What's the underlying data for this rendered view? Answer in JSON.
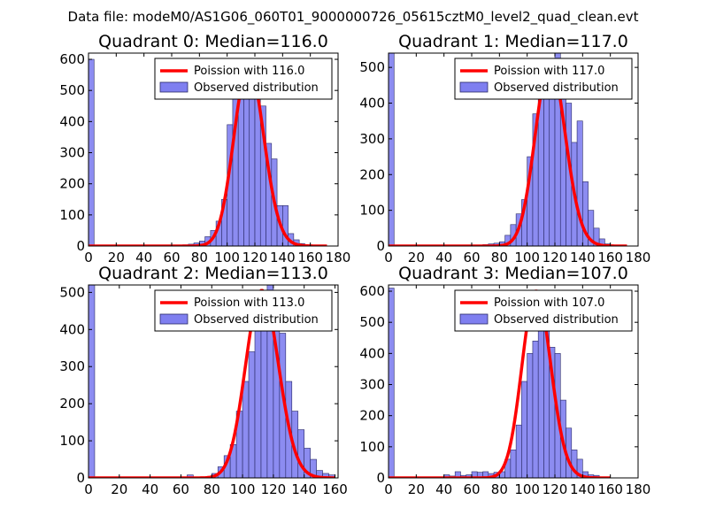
{
  "figure_title": "Data file: modeM0/AS1G06_060T01_9000000726_05615cztM0_level2_quad_clean.evt",
  "chart_data": [
    {
      "type": "bar",
      "title": "Quadrant 0: Median=116.0",
      "median": 116.0,
      "xlim": [
        0,
        180
      ],
      "ylim": [
        0,
        620
      ],
      "xticks": [
        0,
        20,
        40,
        60,
        80,
        100,
        120,
        140,
        160,
        180
      ],
      "yticks": [
        0,
        100,
        200,
        300,
        400,
        500,
        600
      ],
      "bin_width": 4,
      "legend": {
        "position": "top-right",
        "entries": [
          "Poission with 116.0",
          "Observed distribution"
        ]
      },
      "histogram": {
        "name": "Observed distribution",
        "color": "#7f7ff0",
        "bins": [
          [
            0,
            600
          ],
          [
            64,
            2
          ],
          [
            68,
            4
          ],
          [
            72,
            6
          ],
          [
            76,
            10
          ],
          [
            80,
            16
          ],
          [
            84,
            30
          ],
          [
            88,
            50
          ],
          [
            92,
            80
          ],
          [
            96,
            150
          ],
          [
            100,
            390
          ],
          [
            104,
            500
          ],
          [
            108,
            560
          ],
          [
            112,
            600
          ],
          [
            116,
            580
          ],
          [
            120,
            570
          ],
          [
            124,
            450
          ],
          [
            128,
            330
          ],
          [
            132,
            280
          ],
          [
            136,
            130
          ],
          [
            140,
            130
          ],
          [
            144,
            40
          ],
          [
            148,
            20
          ],
          [
            152,
            8
          ],
          [
            156,
            4
          ]
        ]
      },
      "poisson": {
        "name": "Poission with 116.0",
        "color": "#ff0000",
        "peak": 580,
        "x_range": [
          0,
          172
        ]
      }
    },
    {
      "type": "bar",
      "title": "Quadrant 1: Median=117.0",
      "median": 117.0,
      "xlim": [
        0,
        180
      ],
      "ylim": [
        0,
        540
      ],
      "xticks": [
        0,
        20,
        40,
        60,
        80,
        100,
        120,
        140,
        160,
        180
      ],
      "yticks": [
        0,
        100,
        200,
        300,
        400,
        500
      ],
      "bin_width": 4,
      "legend": {
        "position": "top-right",
        "entries": [
          "Poission with 117.0",
          "Observed distribution"
        ]
      },
      "histogram": {
        "name": "Observed distribution",
        "color": "#7f7ff0",
        "bins": [
          [
            0,
            540
          ],
          [
            68,
            4
          ],
          [
            72,
            6
          ],
          [
            76,
            8
          ],
          [
            80,
            12
          ],
          [
            84,
            30
          ],
          [
            88,
            60
          ],
          [
            92,
            90
          ],
          [
            96,
            130
          ],
          [
            100,
            250
          ],
          [
            104,
            370
          ],
          [
            108,
            450
          ],
          [
            112,
            520
          ],
          [
            116,
            520
          ],
          [
            120,
            540
          ],
          [
            124,
            460
          ],
          [
            128,
            400
          ],
          [
            132,
            290
          ],
          [
            136,
            350
          ],
          [
            140,
            180
          ],
          [
            144,
            100
          ],
          [
            148,
            50
          ],
          [
            152,
            20
          ],
          [
            156,
            6
          ]
        ]
      },
      "poisson": {
        "name": "Poission with 117.0",
        "color": "#ff0000",
        "peak": 515,
        "x_range": [
          0,
          172
        ]
      }
    },
    {
      "type": "bar",
      "title": "Quadrant 2: Median=113.0",
      "median": 113.0,
      "xlim": [
        0,
        162
      ],
      "ylim": [
        0,
        520
      ],
      "xticks": [
        0,
        20,
        40,
        60,
        80,
        100,
        120,
        140,
        160
      ],
      "yticks": [
        0,
        100,
        200,
        300,
        400,
        500
      ],
      "bin_width": 4,
      "legend": {
        "position": "top-right",
        "entries": [
          "Poission with 113.0",
          "Observed distribution"
        ]
      },
      "histogram": {
        "name": "Observed distribution",
        "color": "#7f7ff0",
        "bins": [
          [
            0,
            520
          ],
          [
            64,
            8
          ],
          [
            80,
            12
          ],
          [
            84,
            30
          ],
          [
            88,
            60
          ],
          [
            92,
            90
          ],
          [
            96,
            180
          ],
          [
            100,
            260
          ],
          [
            104,
            340
          ],
          [
            108,
            410
          ],
          [
            112,
            480
          ],
          [
            116,
            520
          ],
          [
            120,
            500
          ],
          [
            124,
            390
          ],
          [
            128,
            260
          ],
          [
            132,
            180
          ],
          [
            136,
            130
          ],
          [
            140,
            80
          ],
          [
            144,
            50
          ],
          [
            148,
            20
          ],
          [
            152,
            12
          ],
          [
            156,
            8
          ]
        ]
      },
      "poisson": {
        "name": "Poission with 113.0",
        "color": "#ff0000",
        "peak": 505,
        "x_range": [
          0,
          160
        ]
      }
    },
    {
      "type": "bar",
      "title": "Quadrant 3: Median=107.0",
      "median": 107.0,
      "xlim": [
        0,
        180
      ],
      "ylim": [
        0,
        620
      ],
      "xticks": [
        0,
        20,
        40,
        60,
        80,
        100,
        120,
        140,
        160,
        180
      ],
      "yticks": [
        0,
        100,
        200,
        300,
        400,
        500,
        600
      ],
      "bin_width": 4,
      "legend": {
        "position": "top-right",
        "entries": [
          "Poission with 107.0",
          "Observed distribution"
        ]
      },
      "histogram": {
        "name": "Observed distribution",
        "color": "#7f7ff0",
        "bins": [
          [
            0,
            610
          ],
          [
            40,
            10
          ],
          [
            44,
            6
          ],
          [
            48,
            20
          ],
          [
            52,
            8
          ],
          [
            56,
            10
          ],
          [
            60,
            20
          ],
          [
            64,
            18
          ],
          [
            68,
            20
          ],
          [
            72,
            14
          ],
          [
            76,
            18
          ],
          [
            80,
            20
          ],
          [
            84,
            60
          ],
          [
            88,
            90
          ],
          [
            92,
            170
          ],
          [
            96,
            310
          ],
          [
            100,
            400
          ],
          [
            104,
            440
          ],
          [
            108,
            590
          ],
          [
            112,
            600
          ],
          [
            116,
            420
          ],
          [
            120,
            400
          ],
          [
            124,
            250
          ],
          [
            128,
            160
          ],
          [
            132,
            90
          ],
          [
            136,
            60
          ],
          [
            140,
            20
          ],
          [
            144,
            10
          ],
          [
            148,
            8
          ]
        ]
      },
      "poisson": {
        "name": "Poission with 107.0",
        "color": "#ff0000",
        "peak": 600,
        "x_range": [
          0,
          160
        ]
      }
    }
  ]
}
